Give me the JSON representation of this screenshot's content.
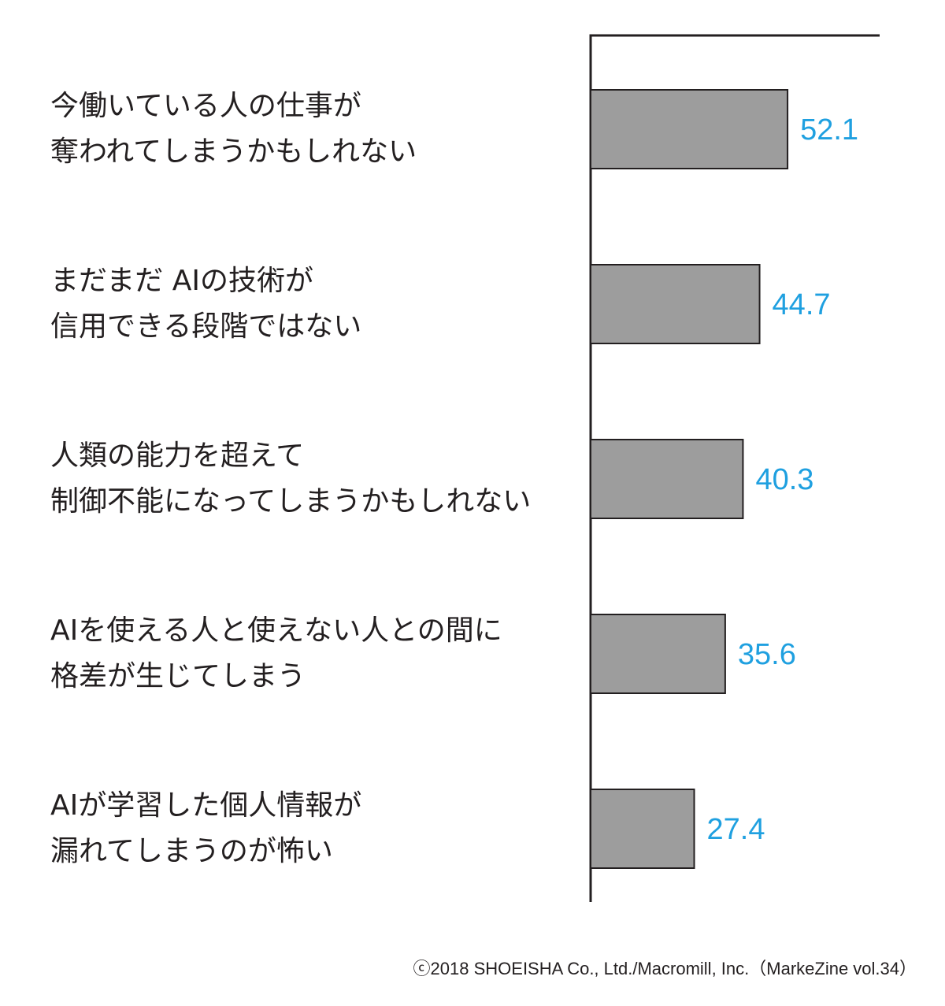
{
  "chart_data": {
    "type": "bar",
    "orientation": "horizontal",
    "categories": [
      [
        "今働いている人の仕事が",
        "奪われてしまうかもしれない"
      ],
      [
        "まだまだ AIの技術が",
        "信用できる段階ではない"
      ],
      [
        "人類の能力を超えて",
        "制御不能になってしまうかもしれない"
      ],
      [
        "AIを使える人と使えない人との間に",
        "格差が生じてしまう"
      ],
      [
        "AIが学習した個人情報が",
        "漏れてしまうのが怖い"
      ]
    ],
    "values": [
      52.1,
      44.7,
      40.3,
      35.6,
      27.4
    ],
    "value_labels": [
      "52.1",
      "44.7",
      "40.3",
      "35.6",
      "27.4"
    ],
    "grid": false,
    "colors": {
      "bar": "#9d9d9d",
      "bar_outline": "#231f20",
      "value_label": "#1fa0e0",
      "text": "#231f20"
    }
  },
  "credit": "ⓒ2018 SHOEISHA Co., Ltd./Macromill, Inc.（MarkeZine vol.34）"
}
